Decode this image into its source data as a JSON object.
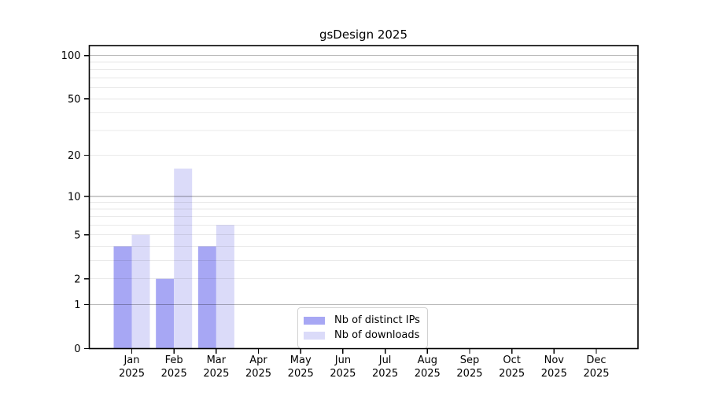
{
  "chart": {
    "title": "gsDesign 2025"
  },
  "chart_data": {
    "type": "bar",
    "title": "gsDesign 2025",
    "categories": [
      "Jan",
      "Feb",
      "Mar",
      "Apr",
      "May",
      "Jun",
      "Jul",
      "Aug",
      "Sep",
      "Oct",
      "Nov",
      "Dec"
    ],
    "category_year": "2025",
    "series": [
      {
        "name": "Nb of distinct IPs",
        "color": "#a7a7f4",
        "values": [
          4,
          2,
          4,
          0,
          0,
          0,
          0,
          0,
          0,
          0,
          0,
          0
        ]
      },
      {
        "name": "Nb of downloads",
        "color": "#dbdbf9",
        "values": [
          5,
          16,
          6,
          0,
          0,
          0,
          0,
          0,
          0,
          0,
          0,
          0
        ]
      }
    ],
    "xlabel": "",
    "ylabel": "",
    "y_scale": "log10(1+x)",
    "yticks": [
      0,
      1,
      2,
      5,
      10,
      20,
      50,
      100
    ],
    "ylim": [
      0,
      117
    ],
    "grid": {
      "on": true,
      "major_at": [
        1,
        10,
        100
      ],
      "minor_at": [
        2,
        3,
        4,
        5,
        6,
        7,
        8,
        9,
        20,
        30,
        40,
        50,
        60,
        70,
        80,
        90
      ]
    },
    "legend_position": "bottom-center-inside",
    "axis_color": "#000000",
    "major_grid_color": "#bababa",
    "minor_grid_color": "#ebebeb"
  }
}
